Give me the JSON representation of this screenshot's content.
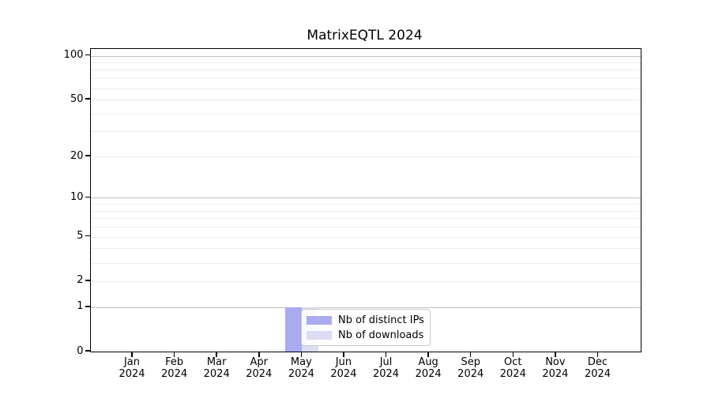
{
  "chart_data": {
    "type": "bar",
    "title": "MatrixEQTL 2024",
    "categories": [
      "Jan 2024",
      "Feb 2024",
      "Mar 2024",
      "Apr 2024",
      "May 2024",
      "Jun 2024",
      "Jul 2024",
      "Aug 2024",
      "Sep 2024",
      "Oct 2024",
      "Nov 2024",
      "Dec 2024"
    ],
    "series": [
      {
        "name": "Nb of distinct IPs",
        "color": "#aaaaf0",
        "values": [
          0,
          0,
          0,
          0,
          1,
          0,
          0,
          0,
          0,
          0,
          0,
          0
        ]
      },
      {
        "name": "Nb of downloads",
        "color": "#dcdcf5",
        "values": [
          0,
          0,
          0,
          0,
          1,
          0,
          0,
          0,
          0,
          0,
          0,
          0
        ]
      }
    ],
    "xlabel": "",
    "ylabel": "",
    "y_scale": "log1p",
    "y_ticks": [
      0,
      1,
      2,
      5,
      10,
      20,
      50,
      100
    ],
    "ylim": [
      0,
      111
    ],
    "grid": "horizontal",
    "legend_position": "inside-lower-center"
  }
}
